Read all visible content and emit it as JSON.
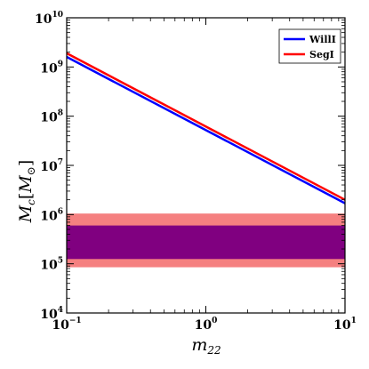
{
  "chart_data": {
    "type": "line",
    "xscale": "log",
    "yscale": "log",
    "xlim": [
      0.1,
      10
    ],
    "ylim": [
      10000,
      10000000000
    ],
    "xlabel": "m",
    "xlabel_sub": "22",
    "ylabel_main": "M",
    "ylabel_sub": "c",
    "ylabel_bracket_open": "[",
    "ylabel_bracket_inner": "M",
    "ylabel_bracket_sub": "⊙",
    "ylabel_bracket_close": "]",
    "x_ticks": [
      {
        "value": 0.1,
        "base": "10",
        "exp": "−1"
      },
      {
        "value": 1,
        "base": "10",
        "exp": "0"
      },
      {
        "value": 10,
        "base": "10",
        "exp": "1"
      }
    ],
    "y_ticks": [
      {
        "value": 10000,
        "base": "10",
        "exp": "4"
      },
      {
        "value": 100000,
        "base": "10",
        "exp": "5"
      },
      {
        "value": 1000000,
        "base": "10",
        "exp": "6"
      },
      {
        "value": 10000000,
        "base": "10",
        "exp": "7"
      },
      {
        "value": 100000000,
        "base": "10",
        "exp": "8"
      },
      {
        "value": 1000000000,
        "base": "10",
        "exp": "9"
      },
      {
        "value": 10000000000,
        "base": "10",
        "exp": "10"
      }
    ],
    "legend_position": "top-right",
    "series": [
      {
        "name": "WillI",
        "color": "#0000ff",
        "x": [
          0.1,
          10
        ],
        "y": [
          1600000000,
          1700000
        ]
      },
      {
        "name": "SegI",
        "color": "#ff0000",
        "x": [
          0.1,
          10
        ],
        "y": [
          1900000000,
          2000000
        ]
      }
    ],
    "bands": [
      {
        "ymin": 85000,
        "ymax": 1050000,
        "color": "#f58080"
      },
      {
        "ymin": 125000,
        "ymax": 600000,
        "color": "#800080"
      }
    ]
  }
}
